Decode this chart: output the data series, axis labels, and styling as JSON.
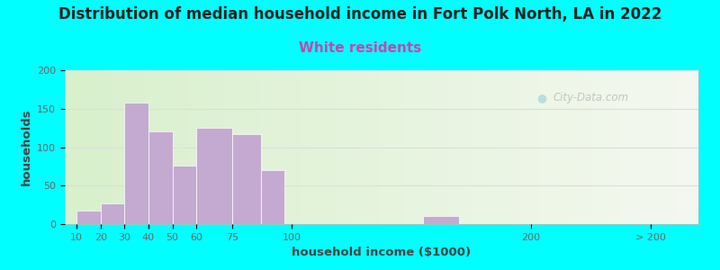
{
  "title": "Distribution of median household income in Fort Polk North, LA in 2022",
  "subtitle": "White residents",
  "xlabel": "household income ($1000)",
  "ylabel": "households",
  "title_fontsize": 12,
  "subtitle_fontsize": 11,
  "subtitle_color": "#cc44aa",
  "bar_color": "#c4aad0",
  "background_outer": "#00ffff",
  "background_left": "#d8f0cc",
  "background_right": "#f0f4ee",
  "ylim": [
    0,
    200
  ],
  "yticks": [
    0,
    50,
    100,
    150,
    200
  ],
  "bar_values": [
    18,
    27,
    158,
    120,
    76,
    125,
    117,
    70,
    0,
    10
  ],
  "bar_x_left": [
    10,
    20,
    30,
    40,
    50,
    60,
    75,
    87,
    115,
    155
  ],
  "bar_x_right": [
    20,
    30,
    40,
    50,
    60,
    75,
    87,
    97,
    125,
    170
  ],
  "xtick_positions": [
    10,
    20,
    30,
    40,
    50,
    60,
    75,
    100,
    200,
    250
  ],
  "xtick_labels": [
    "10",
    "20",
    "30",
    "40",
    "50",
    "60",
    "75",
    "100",
    "200",
    "> 200"
  ],
  "xlim": [
    5,
    270
  ],
  "watermark": "City-Data.com",
  "grid_color": "#dddddd",
  "tick_color": "#666666"
}
